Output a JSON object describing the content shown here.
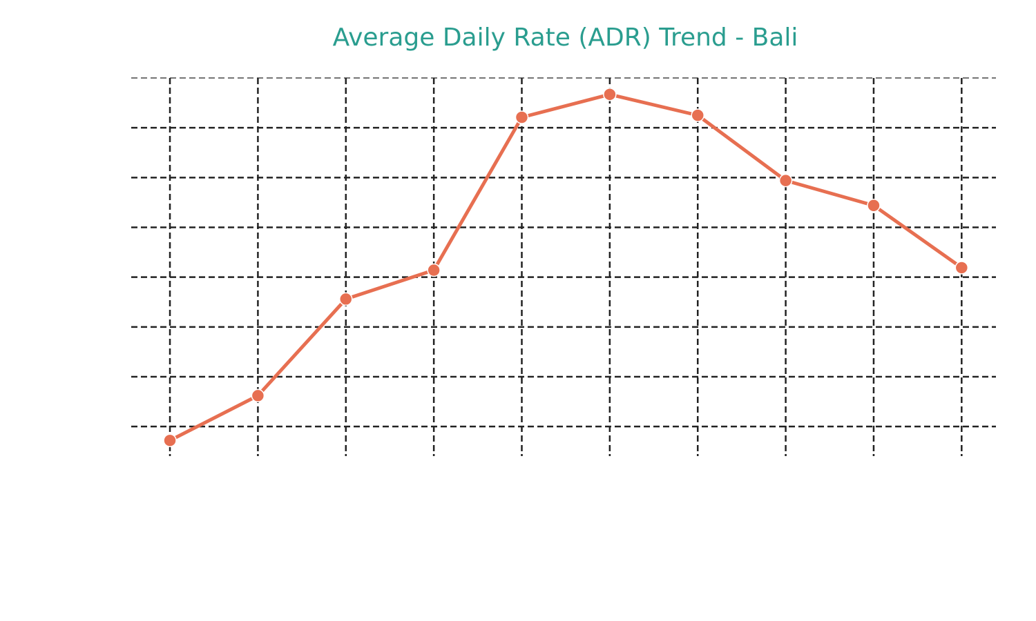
{
  "chart_data": {
    "type": "line",
    "title": "Average Daily Rate (ADR) Trend - Bali",
    "xlabel": "",
    "ylabel": "",
    "x": [
      0,
      1,
      2,
      3,
      4,
      5,
      6,
      7,
      8,
      9
    ],
    "series": [
      {
        "values": [
          -0.28,
          0.62,
          2.56,
          3.14,
          6.21,
          6.67,
          6.25,
          4.94,
          4.44,
          3.19
        ]
      }
    ],
    "xlim": [
      -0.44,
      9.39
    ],
    "ylim": [
      -0.58,
      7.0
    ],
    "yticks": [
      0,
      1,
      2,
      3,
      4,
      5,
      6,
      7
    ],
    "grid": true,
    "grid_style": "dashed",
    "tick_labels_visible": false,
    "colors": {
      "title": "#2a9d8f",
      "line": "#e76f51",
      "grid": "#222222",
      "marker_edge": "#ffffff"
    }
  }
}
